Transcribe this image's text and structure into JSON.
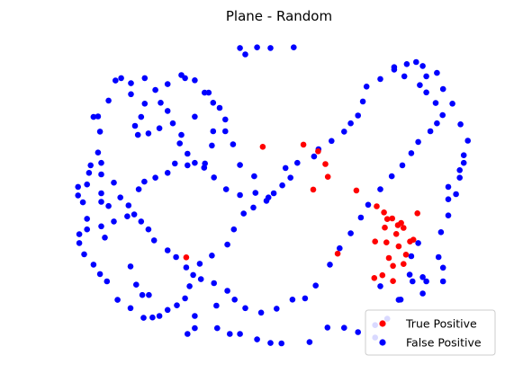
{
  "chart_data": {
    "type": "scatter",
    "title": "Plane - Random",
    "xlabel": "",
    "ylabel": "",
    "axes_visible": false,
    "grid": false,
    "xlim": [
      0,
      100
    ],
    "ylim": [
      0,
      100
    ],
    "legend_position": "bottom-right",
    "series": [
      {
        "name": "False Positive",
        "color": "#0000ff",
        "points": [
          [
            40.4,
            98.1
          ],
          [
            44.6,
            98.3
          ],
          [
            47.9,
            98.1
          ],
          [
            53.6,
            98.3
          ],
          [
            41.7,
            96.0
          ],
          [
            32.7,
            83.4
          ],
          [
            26.9,
            88.2
          ],
          [
            17.0,
            88.2
          ],
          [
            4.4,
            75.4
          ],
          [
            6.3,
            60.3
          ],
          [
            6.3,
            56.5
          ],
          [
            6.3,
            50.3
          ],
          [
            6.3,
            47.5
          ],
          [
            7.2,
            35.7
          ],
          [
            6.3,
            39.4
          ],
          [
            13.5,
            26.2
          ],
          [
            14.9,
            20.2
          ],
          [
            16.4,
            16.8
          ],
          [
            18.0,
            16.8
          ],
          [
            20.6,
            9.9
          ],
          [
            27.5,
            4.0
          ],
          [
            29.3,
            5.9
          ],
          [
            29.3,
            9.9
          ],
          [
            34.6,
            13.3
          ],
          [
            34.8,
            5.9
          ],
          [
            37.9,
            4.0
          ],
          [
            40.4,
            4.0
          ],
          [
            44.6,
            2.2
          ],
          [
            47.9,
            1.0
          ],
          [
            50.6,
            0.9
          ],
          [
            57.5,
            1.3
          ],
          [
            61.9,
            6.1
          ],
          [
            66.0,
            6.0
          ],
          [
            69.4,
            4.6
          ],
          [
            73.6,
            2.8
          ],
          [
            73.6,
            6.9
          ],
          [
            76.6,
            9.0
          ],
          [
            79.4,
            15.2
          ],
          [
            82.8,
            21.3
          ],
          [
            85.3,
            17.3
          ],
          [
            85.3,
            22.7
          ],
          [
            86.2,
            21.3
          ],
          [
            90.3,
            21.3
          ],
          [
            90.3,
            25.8
          ],
          [
            89.2,
            29.3
          ],
          [
            84.2,
            33.9
          ],
          [
            82.5,
            29.6
          ],
          [
            82.1,
            23.5
          ],
          [
            74.9,
            19.7
          ],
          [
            79.9,
            15.3
          ],
          [
            89.8,
            37.5
          ],
          [
            91.6,
            43.0
          ],
          [
            91.6,
            48.3
          ],
          [
            91.6,
            52.4
          ],
          [
            93.5,
            50.0
          ],
          [
            94.4,
            55.4
          ],
          [
            94.4,
            57.9
          ],
          [
            95.4,
            60.3
          ],
          [
            95.4,
            62.8
          ],
          [
            96.4,
            67.6
          ],
          [
            94.6,
            73.0
          ],
          [
            92.6,
            79.8
          ],
          [
            90.3,
            84.6
          ],
          [
            88.8,
            89.9
          ],
          [
            86.2,
            88.8
          ],
          [
            85.3,
            92.2
          ],
          [
            83.7,
            93.5
          ],
          [
            81.4,
            92.8
          ],
          [
            78.3,
            91.8
          ],
          [
            74.9,
            87.9
          ],
          [
            71.5,
            85.4
          ],
          [
            70.6,
            80.5
          ],
          [
            69.4,
            75.9
          ],
          [
            67.6,
            73.3
          ],
          [
            66.0,
            70.6
          ],
          [
            62.9,
            67.5
          ],
          [
            59.7,
            64.8
          ],
          [
            58.6,
            62.4
          ],
          [
            54.5,
            60.3
          ],
          [
            51.6,
            58.6
          ],
          [
            52.8,
            55.4
          ],
          [
            50.8,
            52.9
          ],
          [
            48.7,
            50.3
          ],
          [
            46.9,
            47.8
          ],
          [
            43.7,
            45.6
          ],
          [
            41.3,
            43.6
          ],
          [
            38.9,
            38.4
          ],
          [
            37.3,
            33.4
          ],
          [
            33.5,
            29.8
          ],
          [
            30.5,
            27.1
          ],
          [
            28.9,
            23.4
          ],
          [
            28.0,
            19.7
          ],
          [
            26.9,
            15.7
          ],
          [
            24.9,
            13.4
          ],
          [
            22.6,
            11.9
          ],
          [
            18.9,
            9.4
          ],
          [
            16.7,
            9.3
          ],
          [
            13.5,
            12.5
          ],
          [
            10.3,
            15.2
          ],
          [
            7.7,
            21.3
          ],
          [
            6.0,
            23.7
          ],
          [
            4.4,
            26.8
          ],
          [
            2.1,
            30.2
          ],
          [
            0.9,
            33.9
          ],
          [
            0.9,
            36.8
          ],
          [
            2.8,
            38.4
          ],
          [
            2.8,
            41.9
          ],
          [
            1.8,
            47.3
          ],
          [
            0.6,
            49.6
          ],
          [
            0.6,
            52.4
          ],
          [
            2.8,
            53.2
          ],
          [
            3.3,
            57.0
          ],
          [
            3.7,
            59.5
          ],
          [
            5.5,
            63.7
          ],
          [
            6.0,
            70.6
          ],
          [
            5.5,
            75.6
          ],
          [
            8.1,
            80.8
          ],
          [
            9.8,
            87.4
          ],
          [
            11.2,
            88.2
          ],
          [
            13.6,
            86.5
          ],
          [
            13.6,
            82.9
          ],
          [
            17.0,
            79.8
          ],
          [
            16.1,
            75.4
          ],
          [
            14.6,
            72.5
          ],
          [
            15.3,
            69.5
          ],
          [
            17.9,
            70.0
          ],
          [
            20.6,
            71.7
          ],
          [
            23.9,
            73.3
          ],
          [
            26.0,
            69.5
          ],
          [
            25.6,
            66.7
          ],
          [
            27.5,
            63.3
          ],
          [
            29.3,
            60.3
          ],
          [
            31.6,
            58.7
          ],
          [
            34.0,
            55.5
          ],
          [
            37.0,
            51.6
          ],
          [
            40.4,
            49.7
          ],
          [
            44.2,
            50.4
          ],
          [
            47.4,
            48.9
          ],
          [
            43.9,
            55.9
          ],
          [
            40.4,
            59.6
          ],
          [
            38.7,
            66.4
          ],
          [
            33.8,
            70.7
          ],
          [
            29.3,
            75.5
          ],
          [
            22.6,
            77.4
          ],
          [
            20.9,
            80.1
          ],
          [
            19.6,
            84.3
          ],
          [
            22.6,
            86.2
          ],
          [
            26.0,
            89.2
          ],
          [
            29.3,
            87.5
          ],
          [
            31.7,
            83.4
          ],
          [
            33.8,
            80.1
          ],
          [
            35.4,
            78.4
          ],
          [
            36.8,
            74.6
          ],
          [
            36.8,
            70.7
          ],
          [
            33.5,
            66.0
          ],
          [
            31.8,
            60.1
          ],
          [
            27.5,
            59.5
          ],
          [
            24.4,
            60.1
          ],
          [
            22.6,
            57.0
          ],
          [
            19.6,
            55.4
          ],
          [
            16.9,
            54.1
          ],
          [
            15.5,
            51.6
          ],
          [
            13.0,
            46.3
          ],
          [
            11.0,
            48.9
          ],
          [
            9.4,
            53.8
          ],
          [
            8.1,
            46.1
          ],
          [
            9.4,
            41.0
          ],
          [
            12.7,
            42.7
          ],
          [
            14.4,
            43.3
          ],
          [
            16.1,
            41.0
          ],
          [
            17.9,
            38.4
          ],
          [
            19.3,
            34.8
          ],
          [
            22.6,
            31.5
          ],
          [
            24.7,
            29.3
          ],
          [
            27.2,
            25.9
          ],
          [
            30.8,
            22.0
          ],
          [
            34.0,
            20.7
          ],
          [
            37.3,
            18.2
          ],
          [
            39.1,
            15.3
          ],
          [
            41.7,
            12.5
          ],
          [
            45.6,
            11.0
          ],
          [
            49.4,
            12.3
          ],
          [
            53.3,
            15.3
          ],
          [
            56.4,
            15.7
          ],
          [
            59.0,
            19.9
          ],
          [
            62.5,
            26.8
          ],
          [
            64.9,
            32.2
          ],
          [
            67.6,
            37.1
          ],
          [
            70.1,
            42.3
          ],
          [
            71.9,
            46.5
          ],
          [
            74.9,
            51.6
          ],
          [
            77.7,
            55.9
          ],
          [
            80.3,
            59.5
          ],
          [
            82.5,
            63.5
          ],
          [
            84.2,
            67.2
          ],
          [
            87.2,
            70.7
          ],
          [
            88.8,
            73.3
          ],
          [
            90.2,
            76.0
          ],
          [
            88.5,
            80.0
          ],
          [
            86.2,
            83.5
          ],
          [
            84.6,
            85.9
          ],
          [
            80.8,
            88.8
          ],
          [
            78.3,
            91.0
          ]
        ]
      },
      {
        "name": "True Positive",
        "color": "#ff0000",
        "points": [
          [
            46.0,
            65.6
          ],
          [
            56.0,
            66.3
          ],
          [
            59.6,
            64.1
          ],
          [
            61.4,
            59.9
          ],
          [
            62.0,
            55.7
          ],
          [
            58.4,
            51.5
          ],
          [
            69.0,
            51.2
          ],
          [
            74.0,
            46.0
          ],
          [
            75.8,
            44.0
          ],
          [
            76.6,
            41.8
          ],
          [
            77.8,
            42.0
          ],
          [
            79.2,
            39.8
          ],
          [
            80.0,
            40.5
          ],
          [
            80.6,
            38.9
          ],
          [
            78.8,
            36.9
          ],
          [
            82.2,
            34.4
          ],
          [
            84.0,
            43.7
          ],
          [
            76.0,
            39.0
          ],
          [
            73.6,
            34.4
          ],
          [
            76.4,
            34.1
          ],
          [
            79.4,
            32.8
          ],
          [
            83.0,
            35.0
          ],
          [
            81.2,
            30.1
          ],
          [
            77.0,
            29.0
          ],
          [
            78.0,
            26.4
          ],
          [
            80.6,
            27.0
          ],
          [
            75.4,
            23.3
          ],
          [
            78.0,
            21.4
          ],
          [
            73.4,
            22.4
          ],
          [
            64.4,
            30.4
          ],
          [
            27.2,
            29.2
          ]
        ]
      }
    ]
  },
  "legend": {
    "entries": [
      {
        "label": "True Positive",
        "color": "#ff0000"
      },
      {
        "label": "False Positive",
        "color": "#0000ff"
      }
    ]
  }
}
